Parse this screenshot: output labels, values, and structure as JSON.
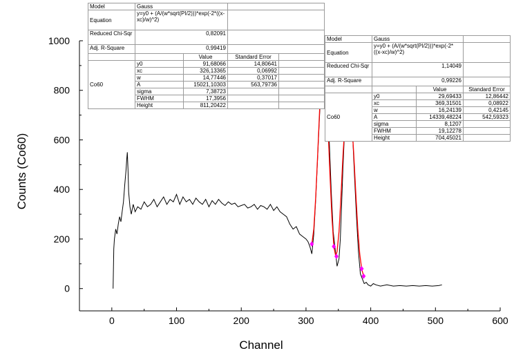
{
  "chart_data": {
    "type": "line",
    "title": "",
    "xlabel": "Channel",
    "ylabel": "Counts (Co60)",
    "xlim": [
      -50,
      600
    ],
    "ylim": [
      -90,
      1000
    ],
    "x_ticks": [
      0,
      100,
      200,
      300,
      400,
      500,
      600
    ],
    "y_ticks": [
      0,
      200,
      400,
      600,
      800,
      1000
    ],
    "grid": false,
    "series": [
      {
        "color": "#000000",
        "x": [
          2,
          3,
          4,
          6,
          8,
          10,
          12,
          14,
          16,
          18,
          20,
          22,
          23,
          24,
          25,
          26,
          28,
          30,
          33,
          36,
          40,
          45,
          50,
          55,
          60,
          65,
          70,
          75,
          80,
          85,
          90,
          95,
          100,
          105,
          110,
          115,
          120,
          125,
          130,
          135,
          140,
          145,
          150,
          155,
          160,
          165,
          170,
          175,
          180,
          185,
          190,
          195,
          200,
          205,
          210,
          215,
          220,
          225,
          230,
          235,
          240,
          245,
          250,
          255,
          260,
          265,
          270,
          275,
          280,
          285,
          290,
          295,
          300,
          303,
          306,
          309,
          312,
          315,
          318,
          321,
          324,
          327,
          330,
          333,
          336,
          339,
          342,
          345,
          348,
          351,
          353,
          355,
          357,
          359,
          362,
          365,
          368,
          370,
          372,
          375,
          378,
          381,
          384,
          387,
          390,
          393,
          396,
          400,
          404,
          408,
          415,
          425,
          435,
          445,
          455,
          465,
          475,
          485,
          495,
          505,
          510
        ],
        "y": [
          0,
          160,
          200,
          240,
          220,
          260,
          290,
          270,
          310,
          350,
          420,
          480,
          520,
          550,
          480,
          390,
          330,
          300,
          340,
          310,
          330,
          320,
          350,
          330,
          340,
          360,
          330,
          350,
          370,
          340,
          360,
          350,
          380,
          340,
          370,
          350,
          360,
          340,
          365,
          350,
          340,
          360,
          330,
          355,
          340,
          360,
          345,
          335,
          350,
          340,
          345,
          330,
          335,
          340,
          325,
          330,
          340,
          320,
          335,
          330,
          320,
          340,
          315,
          330,
          310,
          300,
          290,
          260,
          240,
          250,
          220,
          210,
          200,
          190,
          170,
          140,
          220,
          360,
          530,
          700,
          850,
          900,
          880,
          780,
          590,
          390,
          230,
          160,
          90,
          120,
          200,
          340,
          480,
          600,
          700,
          745,
          720,
          690,
          620,
          450,
          290,
          150,
          60,
          40,
          20,
          25,
          15,
          10,
          20,
          15,
          10,
          15,
          10,
          12,
          10,
          12,
          10,
          12,
          10,
          12,
          15
        ]
      },
      {
        "color": "#ff0000",
        "x": [
          309,
          312,
          315,
          318,
          321,
          324,
          326,
          328,
          331,
          334,
          337,
          340,
          343,
          346,
          348,
          351,
          354,
          357,
          360,
          363,
          366,
          369,
          371,
          374,
          377,
          380,
          383,
          386,
          389
        ],
        "y": [
          180,
          240,
          370,
          540,
          720,
          860,
          905,
          895,
          810,
          650,
          460,
          290,
          170,
          130,
          150,
          230,
          370,
          530,
          660,
          740,
          760,
          735,
          670,
          530,
          380,
          240,
          140,
          80,
          50
        ]
      },
      {
        "color": "#ff00ff",
        "x": [
          309,
          343,
          347,
          386,
          389
        ],
        "y": [
          180,
          170,
          130,
          80,
          50
        ]
      }
    ]
  },
  "fit_tables": [
    {
      "model_label": "Model",
      "model_value": "Gauss",
      "equation_label": "Equation",
      "equation_value": "y=y0 + (A/(w*sqrt(PI/2)))*exp(-2*((x-xc)/w)^2)",
      "chisqr_label": "Reduced Chi-Sqr",
      "chisqr_value": "0,82091",
      "r2_label": "Adj. R-Square",
      "r2_value": "0,99419",
      "value_header": "Value",
      "error_header": "Standard Error",
      "group_label": "Co60",
      "params": [
        {
          "name": "y0",
          "value": "91,68066",
          "error": "14,80641"
        },
        {
          "name": "xc",
          "value": "326,13365",
          "error": "0,06992"
        },
        {
          "name": "w",
          "value": "14,77446",
          "error": "0,37017"
        },
        {
          "name": "A",
          "value": "15021,10303",
          "error": "563,79736"
        },
        {
          "name": "sigma",
          "value": "7,38723",
          "error": ""
        },
        {
          "name": "FWHM",
          "value": "17,3956",
          "error": ""
        },
        {
          "name": "Height",
          "value": "811,20422",
          "error": ""
        }
      ]
    },
    {
      "model_label": "Model",
      "model_value": "Gauss",
      "equation_label": "Equation",
      "equation_value": "y=y0 + (A/(w*sqrt(PI/2)))*exp(-2*((x-xc)/w)^2)",
      "chisqr_label": "Reduced Chi-Sqr",
      "chisqr_value": "1,14049",
      "r2_label": "Adj. R-Square",
      "r2_value": "0,99226",
      "value_header": "Value",
      "error_header": "Standard Error",
      "group_label": "Co60",
      "params": [
        {
          "name": "y0",
          "value": "29,69433",
          "error": "12,86442"
        },
        {
          "name": "xc",
          "value": "369,31501",
          "error": "0,08922"
        },
        {
          "name": "w",
          "value": "16,24139",
          "error": "0,42145"
        },
        {
          "name": "A",
          "value": "14339,48224",
          "error": "542,59323"
        },
        {
          "name": "sigma",
          "value": "8,1207",
          "error": ""
        },
        {
          "name": "FWHM",
          "value": "19,12278",
          "error": ""
        },
        {
          "name": "Height",
          "value": "704,45021",
          "error": ""
        }
      ]
    }
  ]
}
